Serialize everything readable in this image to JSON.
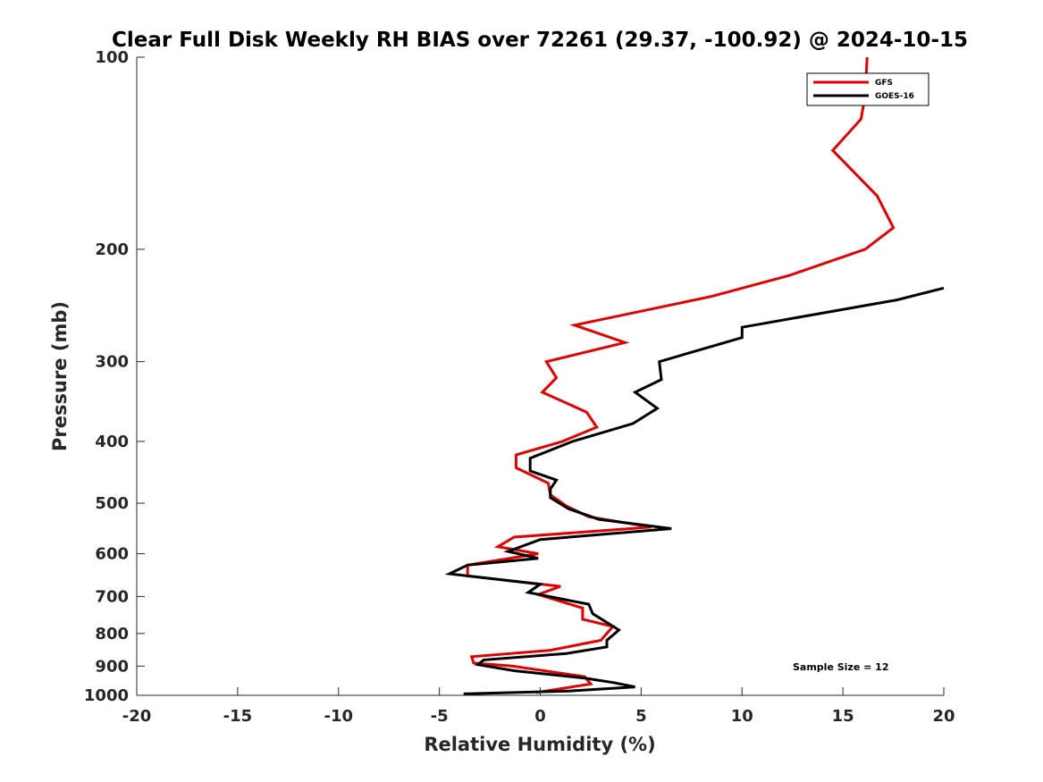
{
  "chart_data": {
    "type": "line",
    "title": "Clear Full Disk Weekly RH BIAS over 72261 (29.37, -100.92) @ 2024-10-15",
    "xlabel": "Relative Humidity (%)",
    "ylabel": "Pressure (mb)",
    "xlim": [
      -20,
      20
    ],
    "ylim": [
      100,
      1000
    ],
    "y_scale": "log",
    "y_reversed": true,
    "x_ticks": [
      -20,
      -15,
      -10,
      -5,
      0,
      5,
      10,
      15,
      20
    ],
    "y_ticks": [
      100,
      200,
      300,
      400,
      500,
      600,
      700,
      800,
      900,
      1000
    ],
    "grid": false,
    "legend_position": "top-right",
    "series": [
      {
        "name": "GFS",
        "color": "#e00000",
        "points": [
          [
            16.2,
            100
          ],
          [
            16.1,
            115
          ],
          [
            15.9,
            125
          ],
          [
            14.5,
            140
          ],
          [
            16.7,
            165
          ],
          [
            17.5,
            185
          ],
          [
            16.1,
            200
          ],
          [
            12.3,
            220
          ],
          [
            8.5,
            237
          ],
          [
            1.7,
            263
          ],
          [
            4.2,
            280
          ],
          [
            0.3,
            300
          ],
          [
            0.8,
            318
          ],
          [
            0.1,
            335
          ],
          [
            2.3,
            360
          ],
          [
            2.8,
            380
          ],
          [
            1.1,
            400
          ],
          [
            -1.2,
            420
          ],
          [
            -1.2,
            440
          ],
          [
            0.4,
            465
          ],
          [
            0.5,
            485
          ],
          [
            1.3,
            505
          ],
          [
            2.4,
            525
          ],
          [
            5.5,
            545
          ],
          [
            -1.3,
            565
          ],
          [
            -2.1,
            585
          ],
          [
            -0.1,
            600
          ],
          [
            -3.6,
            625
          ],
          [
            -3.6,
            650
          ],
          [
            1.0,
            675
          ],
          [
            -0.1,
            695
          ],
          [
            2.1,
            730
          ],
          [
            2.1,
            760
          ],
          [
            3.6,
            780
          ],
          [
            3.0,
            820
          ],
          [
            0.5,
            850
          ],
          [
            -3.4,
            870
          ],
          [
            -3.3,
            890
          ],
          [
            -1.4,
            900
          ],
          [
            2.2,
            935
          ],
          [
            2.5,
            960
          ],
          [
            -0.2,
            990
          ]
        ]
      },
      {
        "name": "GOES-16",
        "color": "#000000",
        "points": [
          [
            20.0,
            230
          ],
          [
            17.7,
            240
          ],
          [
            10.0,
            265
          ],
          [
            10.0,
            275
          ],
          [
            5.9,
            300
          ],
          [
            6.0,
            320
          ],
          [
            4.7,
            335
          ],
          [
            5.8,
            355
          ],
          [
            4.6,
            375
          ],
          [
            1.6,
            400
          ],
          [
            -0.5,
            425
          ],
          [
            -0.5,
            445
          ],
          [
            0.8,
            460
          ],
          [
            0.5,
            475
          ],
          [
            0.5,
            490
          ],
          [
            1.4,
            510
          ],
          [
            2.9,
            530
          ],
          [
            6.5,
            548
          ],
          [
            0.0,
            570
          ],
          [
            -1.6,
            595
          ],
          [
            -0.1,
            610
          ],
          [
            -3.6,
            625
          ],
          [
            -4.5,
            645
          ],
          [
            0.0,
            670
          ],
          [
            -0.6,
            690
          ],
          [
            2.4,
            720
          ],
          [
            2.6,
            745
          ],
          [
            3.9,
            790
          ],
          [
            3.3,
            820
          ],
          [
            3.3,
            840
          ],
          [
            1.3,
            860
          ],
          [
            -2.8,
            880
          ],
          [
            -3.1,
            895
          ],
          [
            -1.3,
            915
          ],
          [
            2.2,
            940
          ],
          [
            3.6,
            955
          ],
          [
            4.7,
            970
          ],
          [
            1.4,
            985
          ],
          [
            -3.8,
            995
          ]
        ]
      }
    ],
    "annotation": "Sample Size = 12"
  }
}
